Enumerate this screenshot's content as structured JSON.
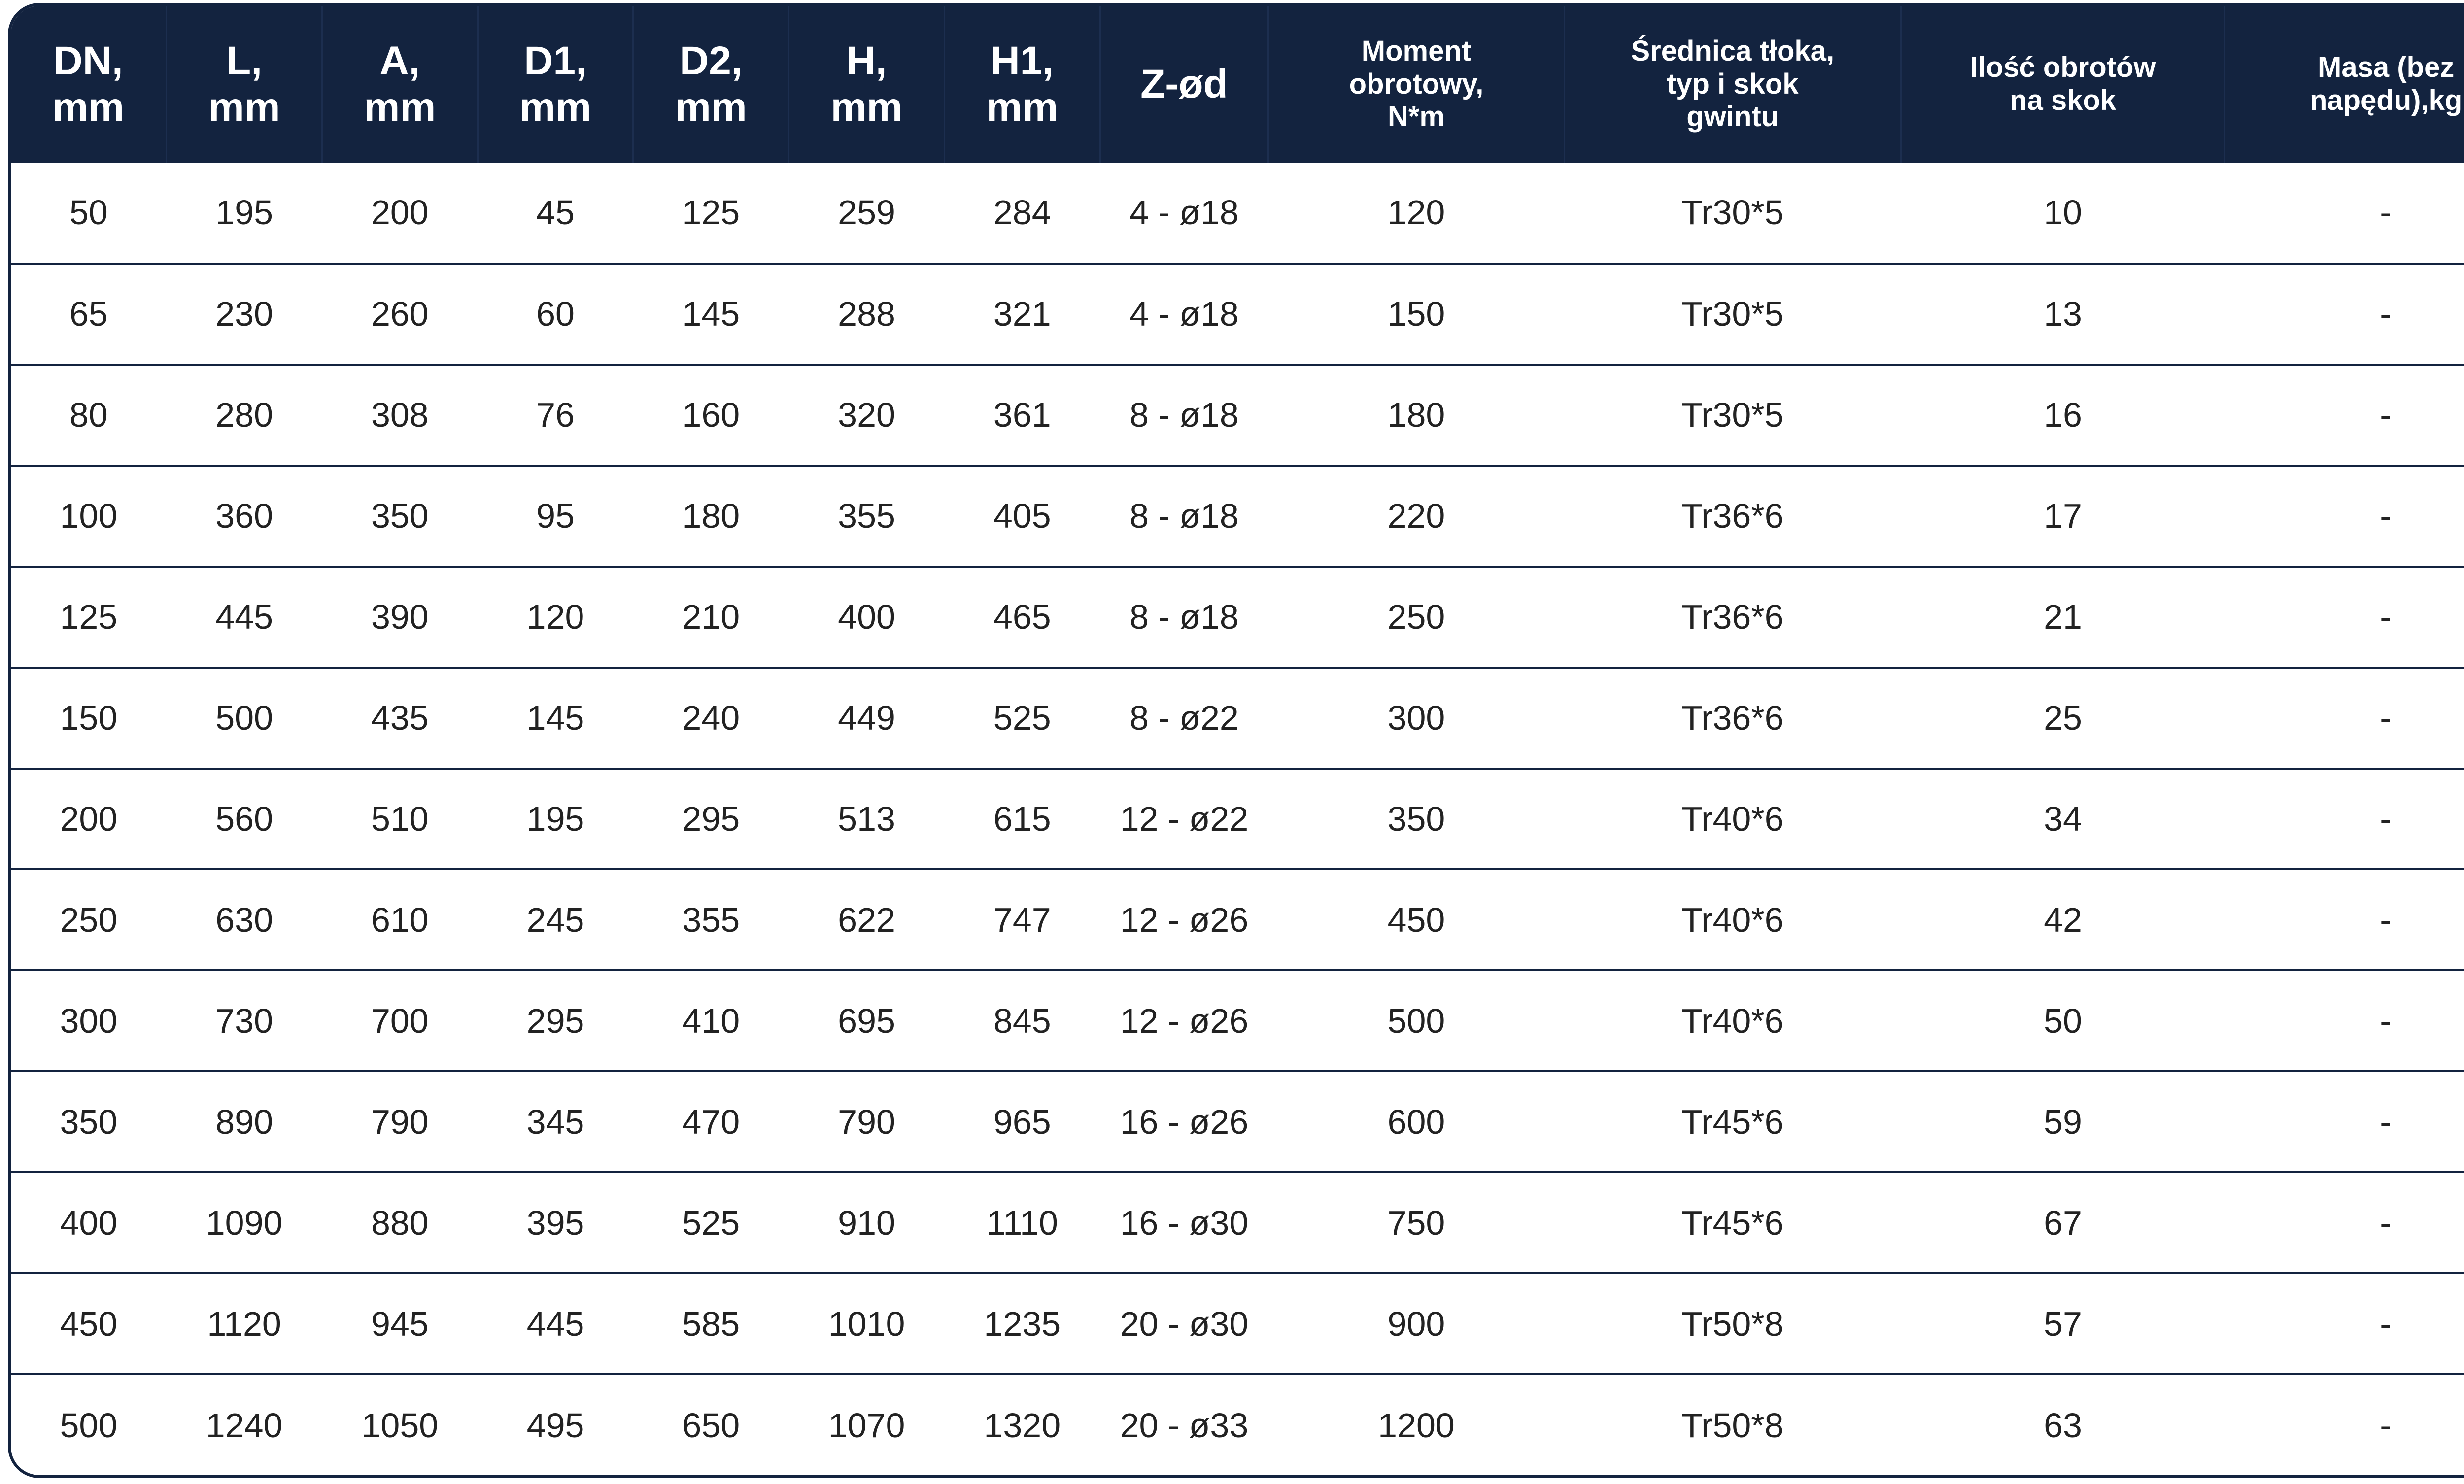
{
  "table": {
    "headers": [
      {
        "lines": [
          "DN,",
          "mm"
        ],
        "size": "big"
      },
      {
        "lines": [
          "L,",
          "mm"
        ],
        "size": "big"
      },
      {
        "lines": [
          "A,",
          "mm"
        ],
        "size": "big"
      },
      {
        "lines": [
          "D1,",
          "mm"
        ],
        "size": "big"
      },
      {
        "lines": [
          "D2,",
          "mm"
        ],
        "size": "big"
      },
      {
        "lines": [
          "H,",
          "mm"
        ],
        "size": "big"
      },
      {
        "lines": [
          "H1,",
          "mm"
        ],
        "size": "big"
      },
      {
        "lines": [
          "Z-ød"
        ],
        "size": "big"
      },
      {
        "lines": [
          "Moment",
          "obrotowy,",
          "N*m"
        ],
        "size": "small"
      },
      {
        "lines": [
          "Średnica tłoka,",
          "typ i skok",
          "gwintu"
        ],
        "size": "small"
      },
      {
        "lines": [
          "Ilość obrotów",
          "na skok"
        ],
        "size": "small"
      },
      {
        "lines": [
          "Masa (bez",
          "napędu),kg"
        ],
        "size": "small"
      }
    ],
    "rows": [
      [
        "50",
        "195",
        "200",
        "45",
        "125",
        "259",
        "284",
        "4 - ø18",
        "120",
        "Tr30*5",
        "10",
        "-"
      ],
      [
        "65",
        "230",
        "260",
        "60",
        "145",
        "288",
        "321",
        "4 - ø18",
        "150",
        "Tr30*5",
        "13",
        "-"
      ],
      [
        "80",
        "280",
        "308",
        "76",
        "160",
        "320",
        "361",
        "8 - ø18",
        "180",
        "Tr30*5",
        "16",
        "-"
      ],
      [
        "100",
        "360",
        "350",
        "95",
        "180",
        "355",
        "405",
        "8 - ø18",
        "220",
        "Tr36*6",
        "17",
        "-"
      ],
      [
        "125",
        "445",
        "390",
        "120",
        "210",
        "400",
        "465",
        "8 - ø18",
        "250",
        "Tr36*6",
        "21",
        "-"
      ],
      [
        "150",
        "500",
        "435",
        "145",
        "240",
        "449",
        "525",
        "8 - ø22",
        "300",
        "Tr36*6",
        "25",
        "-"
      ],
      [
        "200",
        "560",
        "510",
        "195",
        "295",
        "513",
        "615",
        "12 - ø22",
        "350",
        "Tr40*6",
        "34",
        "-"
      ],
      [
        "250",
        "630",
        "610",
        "245",
        "355",
        "622",
        "747",
        "12 - ø26",
        "450",
        "Tr40*6",
        "42",
        "-"
      ],
      [
        "300",
        "730",
        "700",
        "295",
        "410",
        "695",
        "845",
        "12 - ø26",
        "500",
        "Tr40*6",
        "50",
        "-"
      ],
      [
        "350",
        "890",
        "790",
        "345",
        "470",
        "790",
        "965",
        "16 - ø26",
        "600",
        "Tr45*6",
        "59",
        "-"
      ],
      [
        "400",
        "1090",
        "880",
        "395",
        "525",
        "910",
        "1110",
        "16 - ø30",
        "750",
        "Tr45*6",
        "67",
        "-"
      ],
      [
        "450",
        "1120",
        "945",
        "445",
        "585",
        "1010",
        "1235",
        "20 - ø30",
        "900",
        "Tr50*8",
        "57",
        "-"
      ],
      [
        "500",
        "1240",
        "1050",
        "495",
        "650",
        "1070",
        "1320",
        "20 - ø33",
        "1200",
        "Tr50*8",
        "63",
        "-"
      ]
    ]
  },
  "colors": {
    "header_bg": "#13233f",
    "header_text": "#ffffff",
    "row_divider": "#13233f",
    "cell_text": "#222222"
  }
}
